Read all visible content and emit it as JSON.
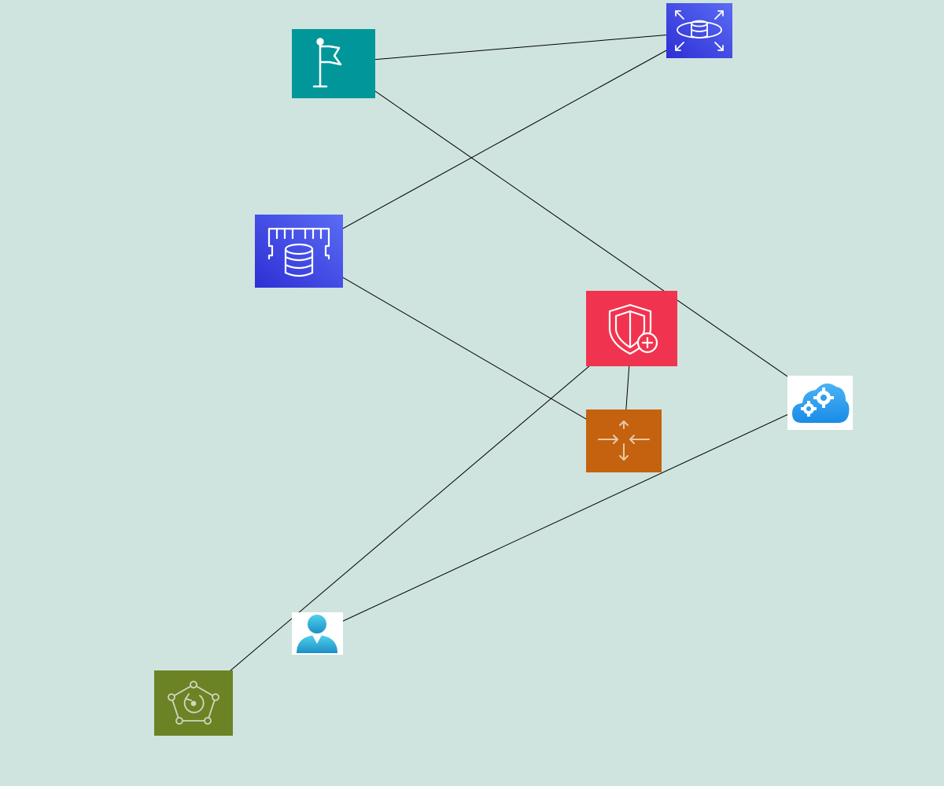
{
  "diagram": {
    "background": "#cfe4de",
    "edge_color": "#000000",
    "nodes": [
      {
        "id": "flag",
        "icon": "flag-icon",
        "color": "#01979a"
      },
      {
        "id": "rds",
        "icon": "rds-database-icon",
        "color": "#3a4de0"
      },
      {
        "id": "memdb",
        "icon": "memory-database-icon",
        "color": "#3a4de0"
      },
      {
        "id": "shield",
        "icon": "shield-plus-icon",
        "color": "#f0344f"
      },
      {
        "id": "router",
        "icon": "router-arrows-icon",
        "color": "#c4620f"
      },
      {
        "id": "cloud",
        "icon": "cloud-gears-icon",
        "color": "#2a9ff0"
      },
      {
        "id": "user",
        "icon": "user-icon",
        "color": "#2aa6d8"
      },
      {
        "id": "robomaker",
        "icon": "robot-network-icon",
        "color": "#6b8324"
      }
    ],
    "edges": [
      {
        "from": "rds",
        "to": "flag"
      },
      {
        "from": "memdb",
        "to": "rds"
      },
      {
        "from": "flag",
        "to": "cloud"
      },
      {
        "from": "router",
        "to": "memdb"
      },
      {
        "from": "shield",
        "to": "router"
      },
      {
        "from": "robomaker",
        "to": "shield"
      },
      {
        "from": "cloud",
        "to": "user"
      }
    ]
  }
}
